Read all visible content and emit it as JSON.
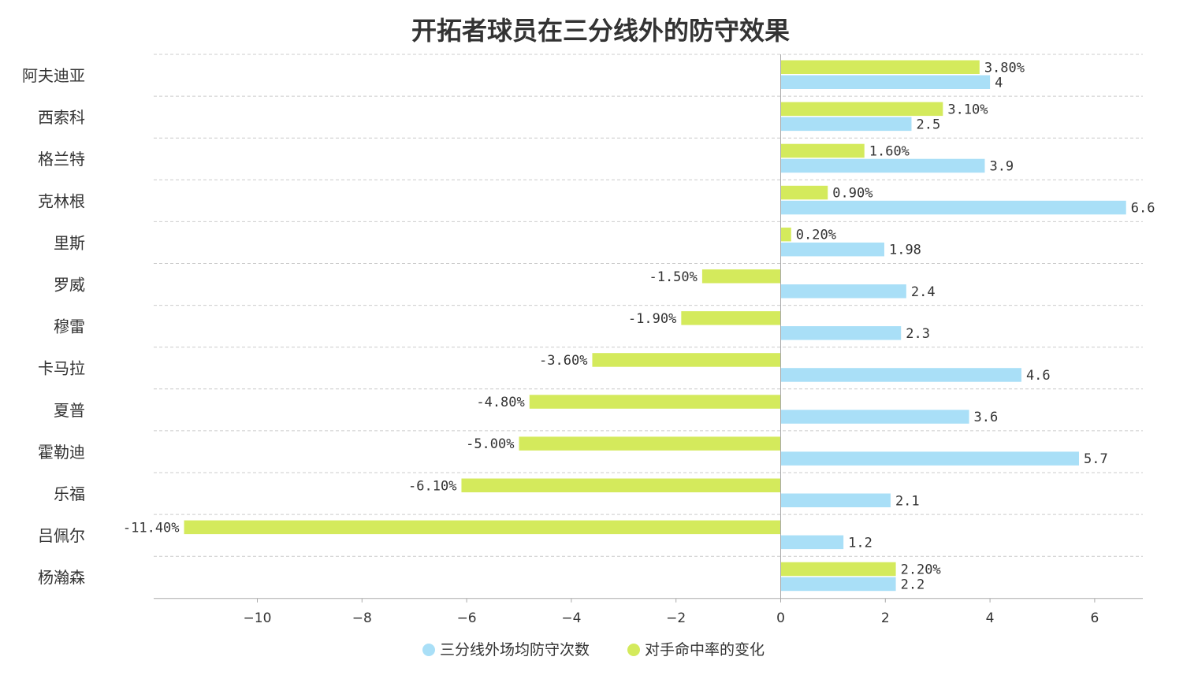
{
  "chart_data": {
    "type": "bar",
    "orientation": "horizontal",
    "title": "开拓者球员在三分线外的防守效果",
    "categories": [
      "阿夫迪亚",
      "西索科",
      "格兰特",
      "克林根",
      "里斯",
      "罗威",
      "穆雷",
      "卡马拉",
      "夏普",
      "霍勒迪",
      "乐福",
      "吕佩尔",
      "杨瀚森"
    ],
    "series": [
      {
        "name": "对手命中率的变化",
        "color": "#d4ea5c",
        "values": [
          3.8,
          3.1,
          1.6,
          0.9,
          0.2,
          -1.5,
          -1.9,
          -3.6,
          -4.8,
          -5.0,
          -6.1,
          -11.4,
          2.2
        ],
        "labels": [
          "3.80%",
          "3.10%",
          "1.60%",
          "0.90%",
          "0.20%",
          "-1.50%",
          "-1.90%",
          "-3.60%",
          "-4.80%",
          "-5.00%",
          "-6.10%",
          "-11.40%",
          "2.20%"
        ]
      },
      {
        "name": "三分线外场均防守次数",
        "color": "#a9dff7",
        "values": [
          4,
          2.5,
          3.9,
          6.6,
          1.98,
          2.4,
          2.3,
          4.6,
          3.6,
          5.7,
          2.1,
          1.2,
          2.2
        ],
        "labels": [
          "4",
          "2.5",
          "3.9",
          "6.6",
          "1.98",
          "2.4",
          "2.3",
          "4.6",
          "3.6",
          "5.7",
          "2.1",
          "1.2",
          "2.2"
        ]
      }
    ],
    "xlim": [
      -12,
      7
    ],
    "xticks": [
      -10,
      -8,
      -6,
      -4,
      -2,
      0,
      2,
      4,
      6
    ],
    "xtick_labels": [
      "−10",
      "−8",
      "−6",
      "−4",
      "−2",
      "0",
      "2",
      "4",
      "6"
    ],
    "grid": "horizontal-dashed",
    "legend": {
      "placement": "bottom-center",
      "items": [
        {
          "name": "三分线外场均防守次数",
          "color": "#a9dff7"
        },
        {
          "name": "对手命中率的变化",
          "color": "#d4ea5c"
        }
      ]
    }
  }
}
